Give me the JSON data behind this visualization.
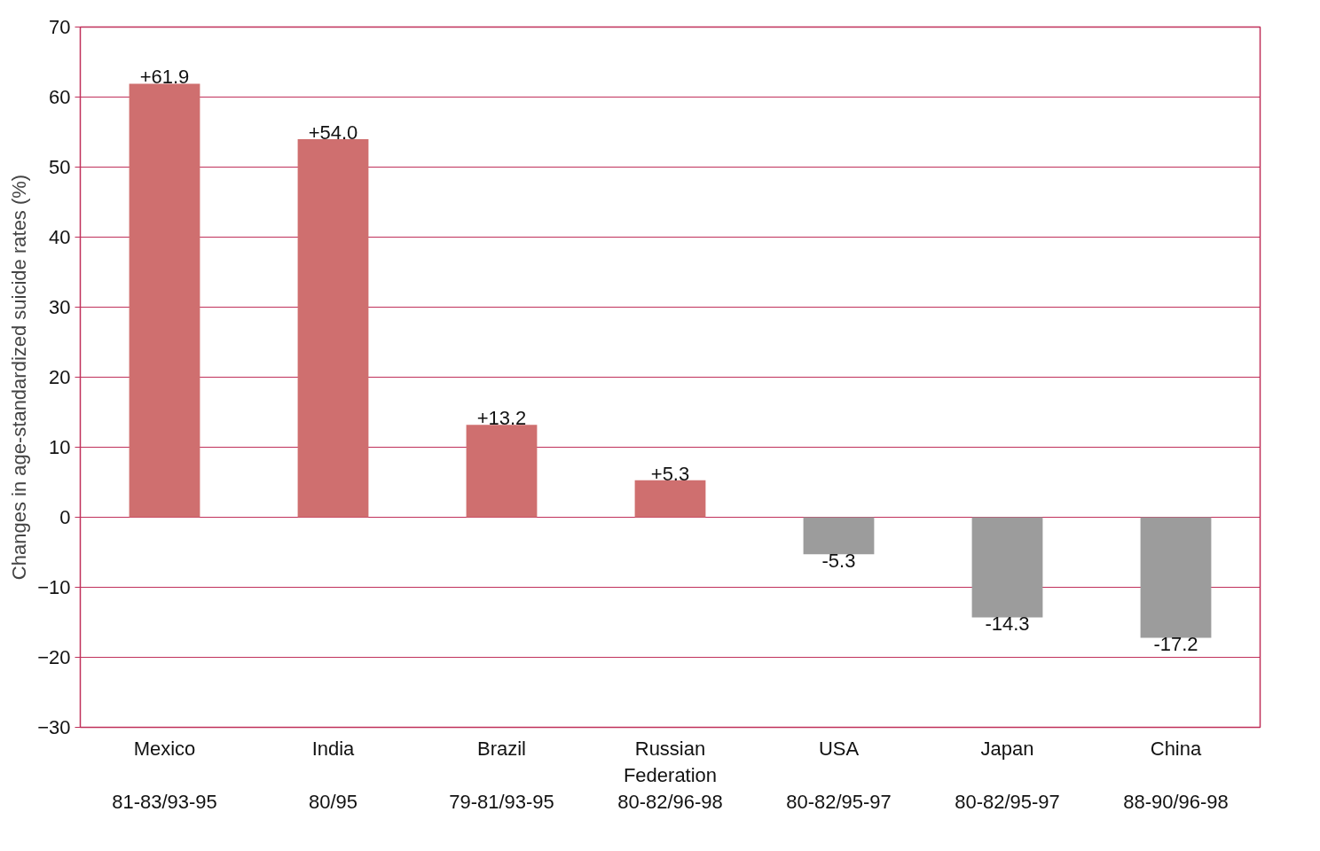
{
  "chart_data": {
    "type": "bar",
    "ylabel": "Changes in age-standardized suicide rates (%)",
    "categories": [
      "Mexico\n\n81-83/93-95",
      "India\n\n80/95",
      "Brazil\n\n79-81/93-95",
      "Russian\nFederation\n80-82/96-98",
      "USA\n\n80-82/95-97",
      "Japan\n\n80-82/95-97",
      "China\n\n88-90/96-98"
    ],
    "values": [
      61.9,
      54.0,
      13.2,
      5.3,
      -5.3,
      -14.3,
      -17.2
    ],
    "value_labels": [
      "+61.9",
      "+54.0",
      "+13.2",
      "+5.3",
      "-5.3",
      "-14.3",
      "-17.2"
    ],
    "colors": [
      "#cf6f6f",
      "#cf6f6f",
      "#cf6f6f",
      "#cf6f6f",
      "#9c9c9c",
      "#9c9c9c",
      "#9c9c9c"
    ],
    "ylim": [
      -30,
      70
    ],
    "yticks": [
      -30,
      -20,
      -10,
      0,
      10,
      20,
      30,
      40,
      50,
      60,
      70
    ],
    "grid": "y"
  }
}
